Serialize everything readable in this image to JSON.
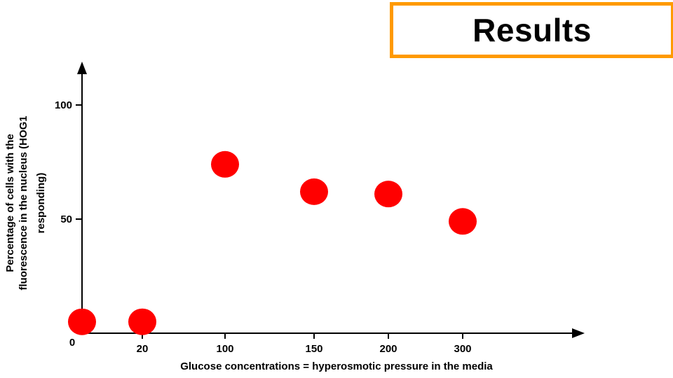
{
  "slide": {
    "title": "Results"
  },
  "colors": {
    "title_border": "#ff9a00",
    "point": "#ff0000",
    "axis": "#000000"
  },
  "chart_data": {
    "type": "scatter",
    "title": "",
    "xlabel": "Glucose concentrations = hyperosmotic pressure in the media",
    "ylabel_lines": [
      "Percentage of cells with the",
      "fluorescence in the nucleus (HOG1",
      "responding)"
    ],
    "x_categories": [
      "0",
      "20",
      "100",
      "150",
      "200",
      "300"
    ],
    "y_ticks": [
      50,
      100
    ],
    "ylim": [
      0,
      120
    ],
    "grid": false,
    "points": [
      {
        "x": "0",
        "y": 5
      },
      {
        "x": "20",
        "y": 5
      },
      {
        "x": "100",
        "y": 74
      },
      {
        "x": "150",
        "y": 62
      },
      {
        "x": "200",
        "y": 61
      },
      {
        "x": "300",
        "y": 49
      }
    ]
  }
}
